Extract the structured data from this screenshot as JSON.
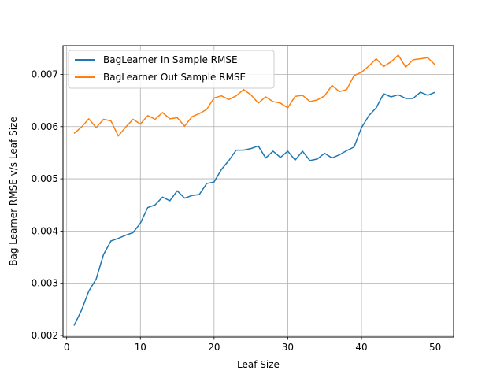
{
  "chart_data": {
    "type": "line",
    "title": "",
    "xlabel": "Leaf Size",
    "ylabel": "Bag Learner RMSE v/s Leaf Size",
    "xlim": [
      -0.5,
      52.5
    ],
    "ylim": [
      0.00197,
      0.00755
    ],
    "xticks": [
      0,
      10,
      20,
      30,
      40,
      50
    ],
    "xtick_labels": [
      "0",
      "10",
      "20",
      "30",
      "40",
      "50"
    ],
    "yticks": [
      0.002,
      0.003,
      0.004,
      0.005,
      0.006,
      0.007
    ],
    "ytick_labels": [
      "0.002",
      "0.003",
      "0.004",
      "0.005",
      "0.006",
      "0.007"
    ],
    "grid": true,
    "legend_position": "top-left",
    "x": [
      1,
      2,
      3,
      4,
      5,
      6,
      7,
      8,
      9,
      10,
      11,
      12,
      13,
      14,
      15,
      16,
      17,
      18,
      19,
      20,
      21,
      22,
      23,
      24,
      25,
      26,
      27,
      28,
      29,
      30,
      31,
      32,
      33,
      34,
      35,
      36,
      37,
      38,
      39,
      40,
      41,
      42,
      43,
      44,
      45,
      46,
      47,
      48,
      49,
      50
    ],
    "series": [
      {
        "name": "BagLearner In Sample RMSE",
        "color": "#1f77b4",
        "values": [
          0.00219,
          0.00248,
          0.00285,
          0.00308,
          0.00355,
          0.00381,
          0.00386,
          0.00392,
          0.00397,
          0.00415,
          0.00445,
          0.0045,
          0.00465,
          0.00458,
          0.00477,
          0.00463,
          0.00468,
          0.0047,
          0.00491,
          0.00494,
          0.00518,
          0.00535,
          0.00555,
          0.00555,
          0.00558,
          0.00563,
          0.0054,
          0.00553,
          0.00541,
          0.00553,
          0.00536,
          0.00553,
          0.00535,
          0.00538,
          0.00549,
          0.0054,
          0.00546,
          0.00554,
          0.00561,
          0.00598,
          0.00621,
          0.00636,
          0.00663,
          0.00657,
          0.00661,
          0.00654,
          0.00654,
          0.00666,
          0.0066,
          0.00666
        ]
      },
      {
        "name": "BagLearner Out Sample RMSE",
        "color": "#ff7f0e",
        "values": [
          0.00587,
          0.00599,
          0.00615,
          0.00598,
          0.00614,
          0.00611,
          0.00582,
          0.00599,
          0.00614,
          0.00605,
          0.00621,
          0.00614,
          0.00627,
          0.00615,
          0.00617,
          0.00601,
          0.00619,
          0.00625,
          0.00633,
          0.00655,
          0.00659,
          0.00652,
          0.00659,
          0.00671,
          0.00661,
          0.00645,
          0.00657,
          0.00648,
          0.00645,
          0.00636,
          0.00658,
          0.0066,
          0.00648,
          0.00651,
          0.00659,
          0.00679,
          0.00667,
          0.00671,
          0.00698,
          0.00704,
          0.00716,
          0.0073,
          0.00715,
          0.00724,
          0.00737,
          0.00714,
          0.00728,
          0.0073,
          0.00732,
          0.00718
        ]
      }
    ]
  }
}
